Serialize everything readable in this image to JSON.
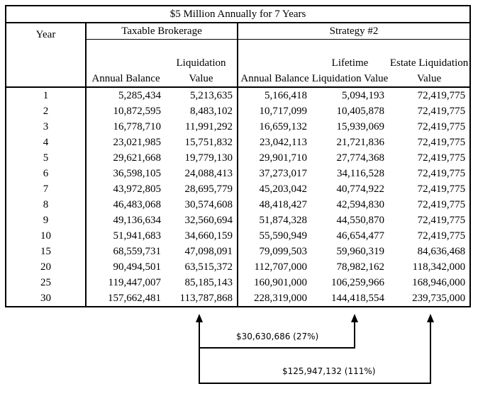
{
  "title": "$5 Million Annually for 7 Years",
  "groups": {
    "taxable": "Taxable Brokerage",
    "strategy": "Strategy #2"
  },
  "columns": {
    "year": "Year",
    "tb_balance": "Annual Balance",
    "tb_liq": "Liquidation Value",
    "s_balance": "Annual Balance",
    "s_lifetime": "Lifetime Liquidation Value",
    "s_estate": "Estate Liquidation Value"
  },
  "rows": [
    [
      "1",
      "5,285,434",
      "5,213,635",
      "5,166,418",
      "5,094,193",
      "72,419,775"
    ],
    [
      "2",
      "10,872,595",
      "8,483,102",
      "10,717,099",
      "10,405,878",
      "72,419,775"
    ],
    [
      "3",
      "16,778,710",
      "11,991,292",
      "16,659,132",
      "15,939,069",
      "72,419,775"
    ],
    [
      "4",
      "23,021,985",
      "15,751,832",
      "23,042,113",
      "21,721,836",
      "72,419,775"
    ],
    [
      "5",
      "29,621,668",
      "19,779,130",
      "29,901,710",
      "27,774,368",
      "72,419,775"
    ],
    [
      "6",
      "36,598,105",
      "24,088,413",
      "37,273,017",
      "34,116,528",
      "72,419,775"
    ],
    [
      "7",
      "43,972,805",
      "28,695,779",
      "45,203,042",
      "40,774,922",
      "72,419,775"
    ],
    [
      "8",
      "46,483,068",
      "30,574,608",
      "48,418,427",
      "42,594,830",
      "72,419,775"
    ],
    [
      "9",
      "49,136,634",
      "32,560,694",
      "51,874,328",
      "44,550,870",
      "72,419,775"
    ],
    [
      "10",
      "51,941,683",
      "34,660,159",
      "55,590,949",
      "46,654,477",
      "72,419,775"
    ],
    [
      "15",
      "68,559,731",
      "47,098,091",
      "79,099,503",
      "59,960,319",
      "84,636,468"
    ],
    [
      "20",
      "90,494,501",
      "63,515,372",
      "112,707,000",
      "78,982,162",
      "118,342,000"
    ],
    [
      "25",
      "119,447,007",
      "85,185,143",
      "160,901,000",
      "106,259,966",
      "168,946,000"
    ],
    [
      "30",
      "157,662,481",
      "113,787,868",
      "228,319,000",
      "144,418,554",
      "239,735,000"
    ]
  ],
  "annotations": {
    "lifetime_diff": "$30,630,686 (27%)",
    "estate_diff": "$125,947,132 (111%)"
  }
}
